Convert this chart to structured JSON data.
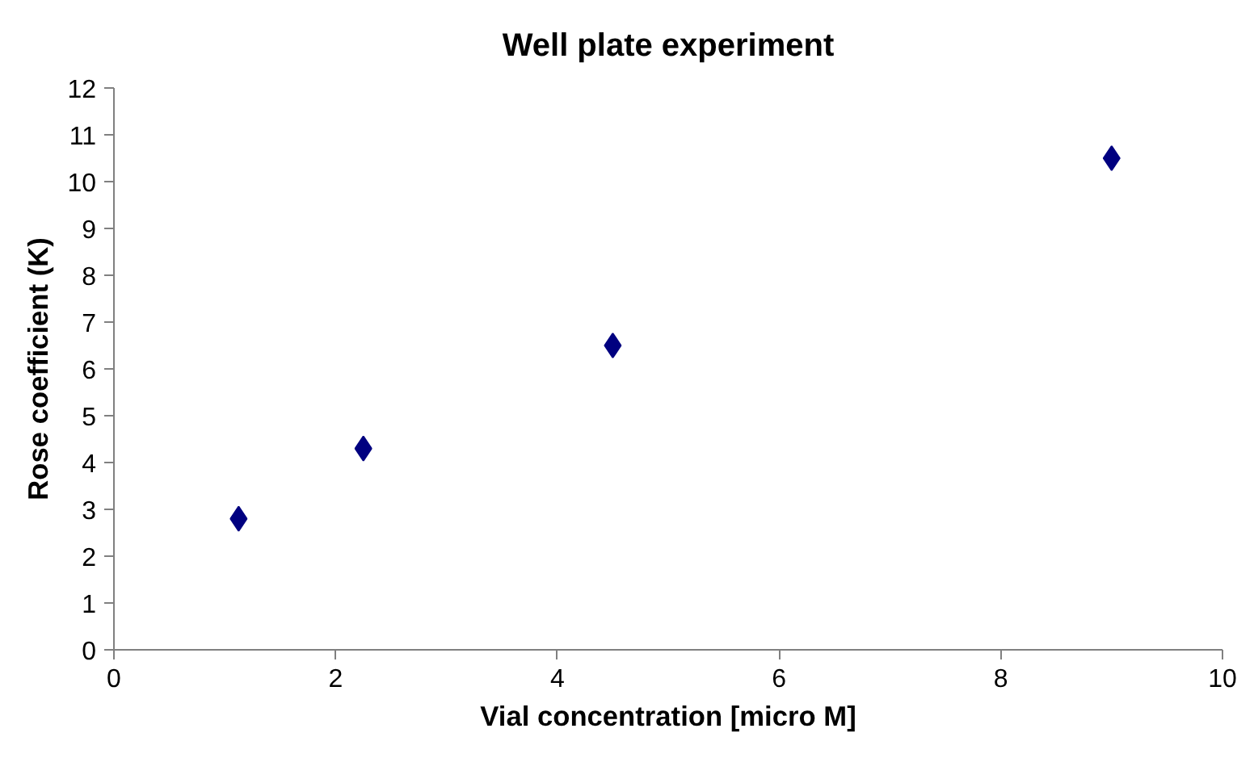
{
  "chart_data": {
    "type": "scatter",
    "title": "Well plate experiment",
    "xlabel": "Vial concentration [micro M]",
    "ylabel": "Rose coefficient (K)",
    "x": [
      1.125,
      2.25,
      4.5,
      9
    ],
    "series": [
      {
        "color": "#000080",
        "values": [
          2.8,
          4.3,
          6.5,
          10.5
        ]
      }
    ],
    "marker": "diamond",
    "grid": false,
    "xlim": [
      0,
      10
    ],
    "xticks": [
      0,
      2,
      4,
      6,
      8,
      10
    ],
    "ylim": [
      0,
      12
    ],
    "yticks": [
      0,
      1,
      2,
      3,
      4,
      5,
      6,
      7,
      8,
      9,
      10,
      11,
      12
    ]
  }
}
